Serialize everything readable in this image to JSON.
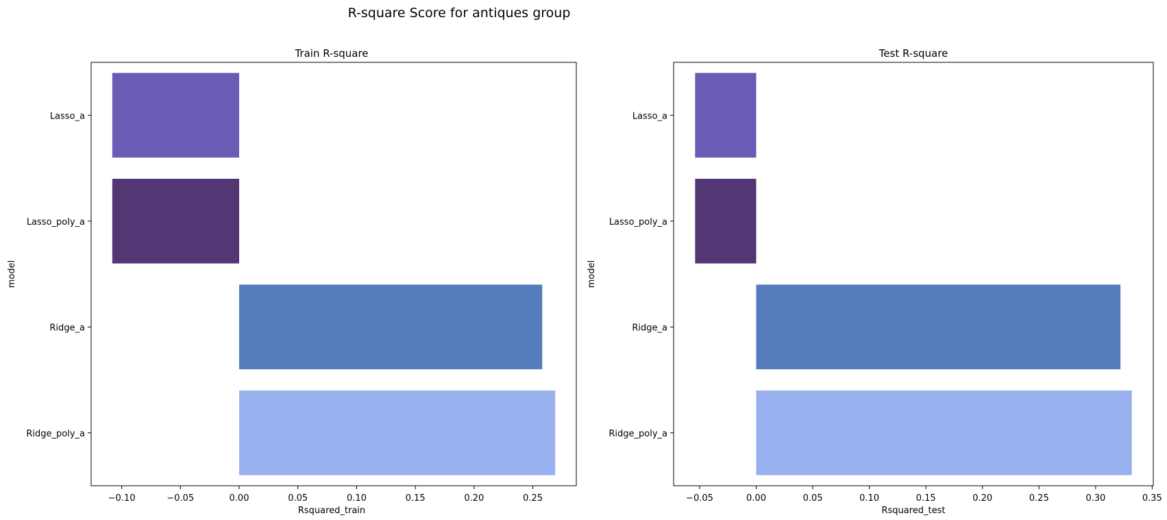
{
  "figure": {
    "title": "R-square Score for antiques group"
  },
  "chart_data": [
    {
      "type": "bar",
      "orientation": "horizontal",
      "title": "Train R-square",
      "xlabel": "Rsquared_train",
      "ylabel": "model",
      "categories": [
        "Lasso_a",
        "Lasso_poly_a",
        "Ridge_a",
        "Ridge_poly_a"
      ],
      "values": [
        -0.108,
        -0.108,
        0.258,
        0.269
      ],
      "colors": [
        "#6a5cb4",
        "#533775",
        "#557dbd",
        "#9ab1f0"
      ],
      "xlim": [
        -0.126,
        0.287
      ],
      "xticks": [
        -0.1,
        -0.05,
        0.0,
        0.05,
        0.1,
        0.15,
        0.2,
        0.25
      ],
      "xtick_labels": [
        "−0.10",
        "−0.05",
        "0.00",
        "0.05",
        "0.10",
        "0.15",
        "0.20",
        "0.25"
      ],
      "grid": false,
      "legend": "none"
    },
    {
      "type": "bar",
      "orientation": "horizontal",
      "title": "Test R-square",
      "xlabel": "Rsquared_test",
      "ylabel": "model",
      "categories": [
        "Lasso_a",
        "Lasso_poly_a",
        "Ridge_a",
        "Ridge_poly_a"
      ],
      "values": [
        -0.054,
        -0.054,
        0.322,
        0.332
      ],
      "colors": [
        "#6a5cb4",
        "#533775",
        "#557dbd",
        "#9ab1f0"
      ],
      "xlim": [
        -0.073,
        0.351
      ],
      "xticks": [
        -0.05,
        0.0,
        0.05,
        0.1,
        0.15,
        0.2,
        0.25,
        0.3,
        0.35
      ],
      "xtick_labels": [
        "−0.05",
        "0.00",
        "0.05",
        "0.10",
        "0.15",
        "0.20",
        "0.25",
        "0.30",
        "0.35"
      ],
      "grid": false,
      "legend": "none"
    }
  ]
}
